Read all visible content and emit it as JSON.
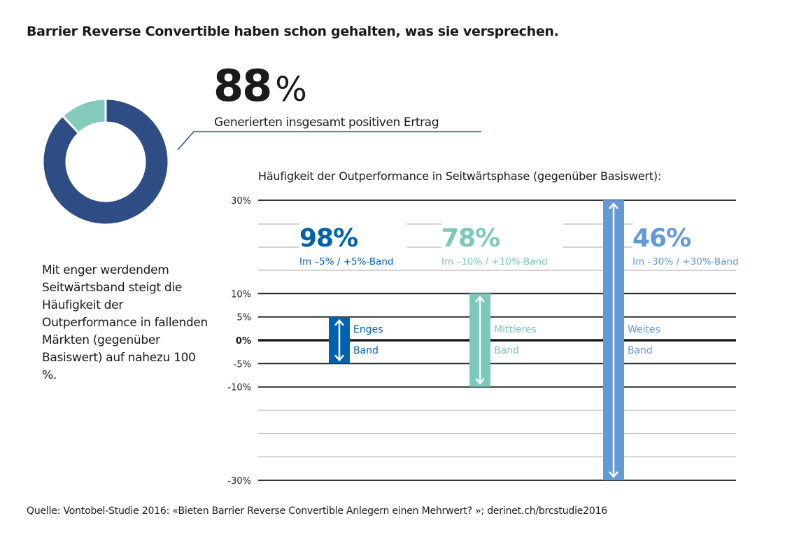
{
  "title": "Barrier Reverse Convertible haben schon gehalten, was sie versprechen.",
  "donut": {
    "value": "88",
    "unit": "%",
    "caption": "Generierten insgesamt positiven Ertrag",
    "positive_share": 88,
    "colors": {
      "positive": "#2e4d85",
      "other": "#84cbbd"
    }
  },
  "side_text": "Mit enger werdendem Seitwärtsband steigt die Häufigkeit der Outperformance in fallenden Märkten (gegenüber Basiswert) auf nahezu 100 %.",
  "source": "Quelle: Vontobel-Studie 2016:  «Bieten Barrier Reverse Convertible Anlegern einen Mehrwert? »; derinet.ch/brcstudie2016",
  "chart_data": {
    "type": "bar",
    "title": "Häufigkeit der Outperformance in Seitwärtsphase (gegenüber Basiswert):",
    "ylim": [
      -30,
      30
    ],
    "yticks": [
      {
        "value": 30,
        "label": "30%"
      },
      {
        "value": 10,
        "label": "10%"
      },
      {
        "value": 5,
        "label": "5%"
      },
      {
        "value": 0,
        "label": "0%"
      },
      {
        "value": -5,
        "label": "-5%"
      },
      {
        "value": -10,
        "label": "-10%"
      },
      {
        "value": -30,
        "label": "-30%"
      }
    ],
    "series": [
      {
        "label_line1": "Enges",
        "label_line2": "Band",
        "low": -5,
        "high": 5,
        "frequency": "98%",
        "band_label": "Im –5%  / +5%-Band",
        "color": "#0061ad"
      },
      {
        "label_line1": "Mittleres",
        "label_line2": "Band",
        "low": -10,
        "high": 10,
        "frequency": "78%",
        "band_label": "Im –10%  / +10%-Band",
        "color": "#7ac9b9"
      },
      {
        "label_line1": "Weites",
        "label_line2": "Band",
        "low": -30,
        "high": 30,
        "frequency": "46%",
        "band_label": "Im –30%  / +30%-Band",
        "color": "#6399d4"
      }
    ]
  }
}
